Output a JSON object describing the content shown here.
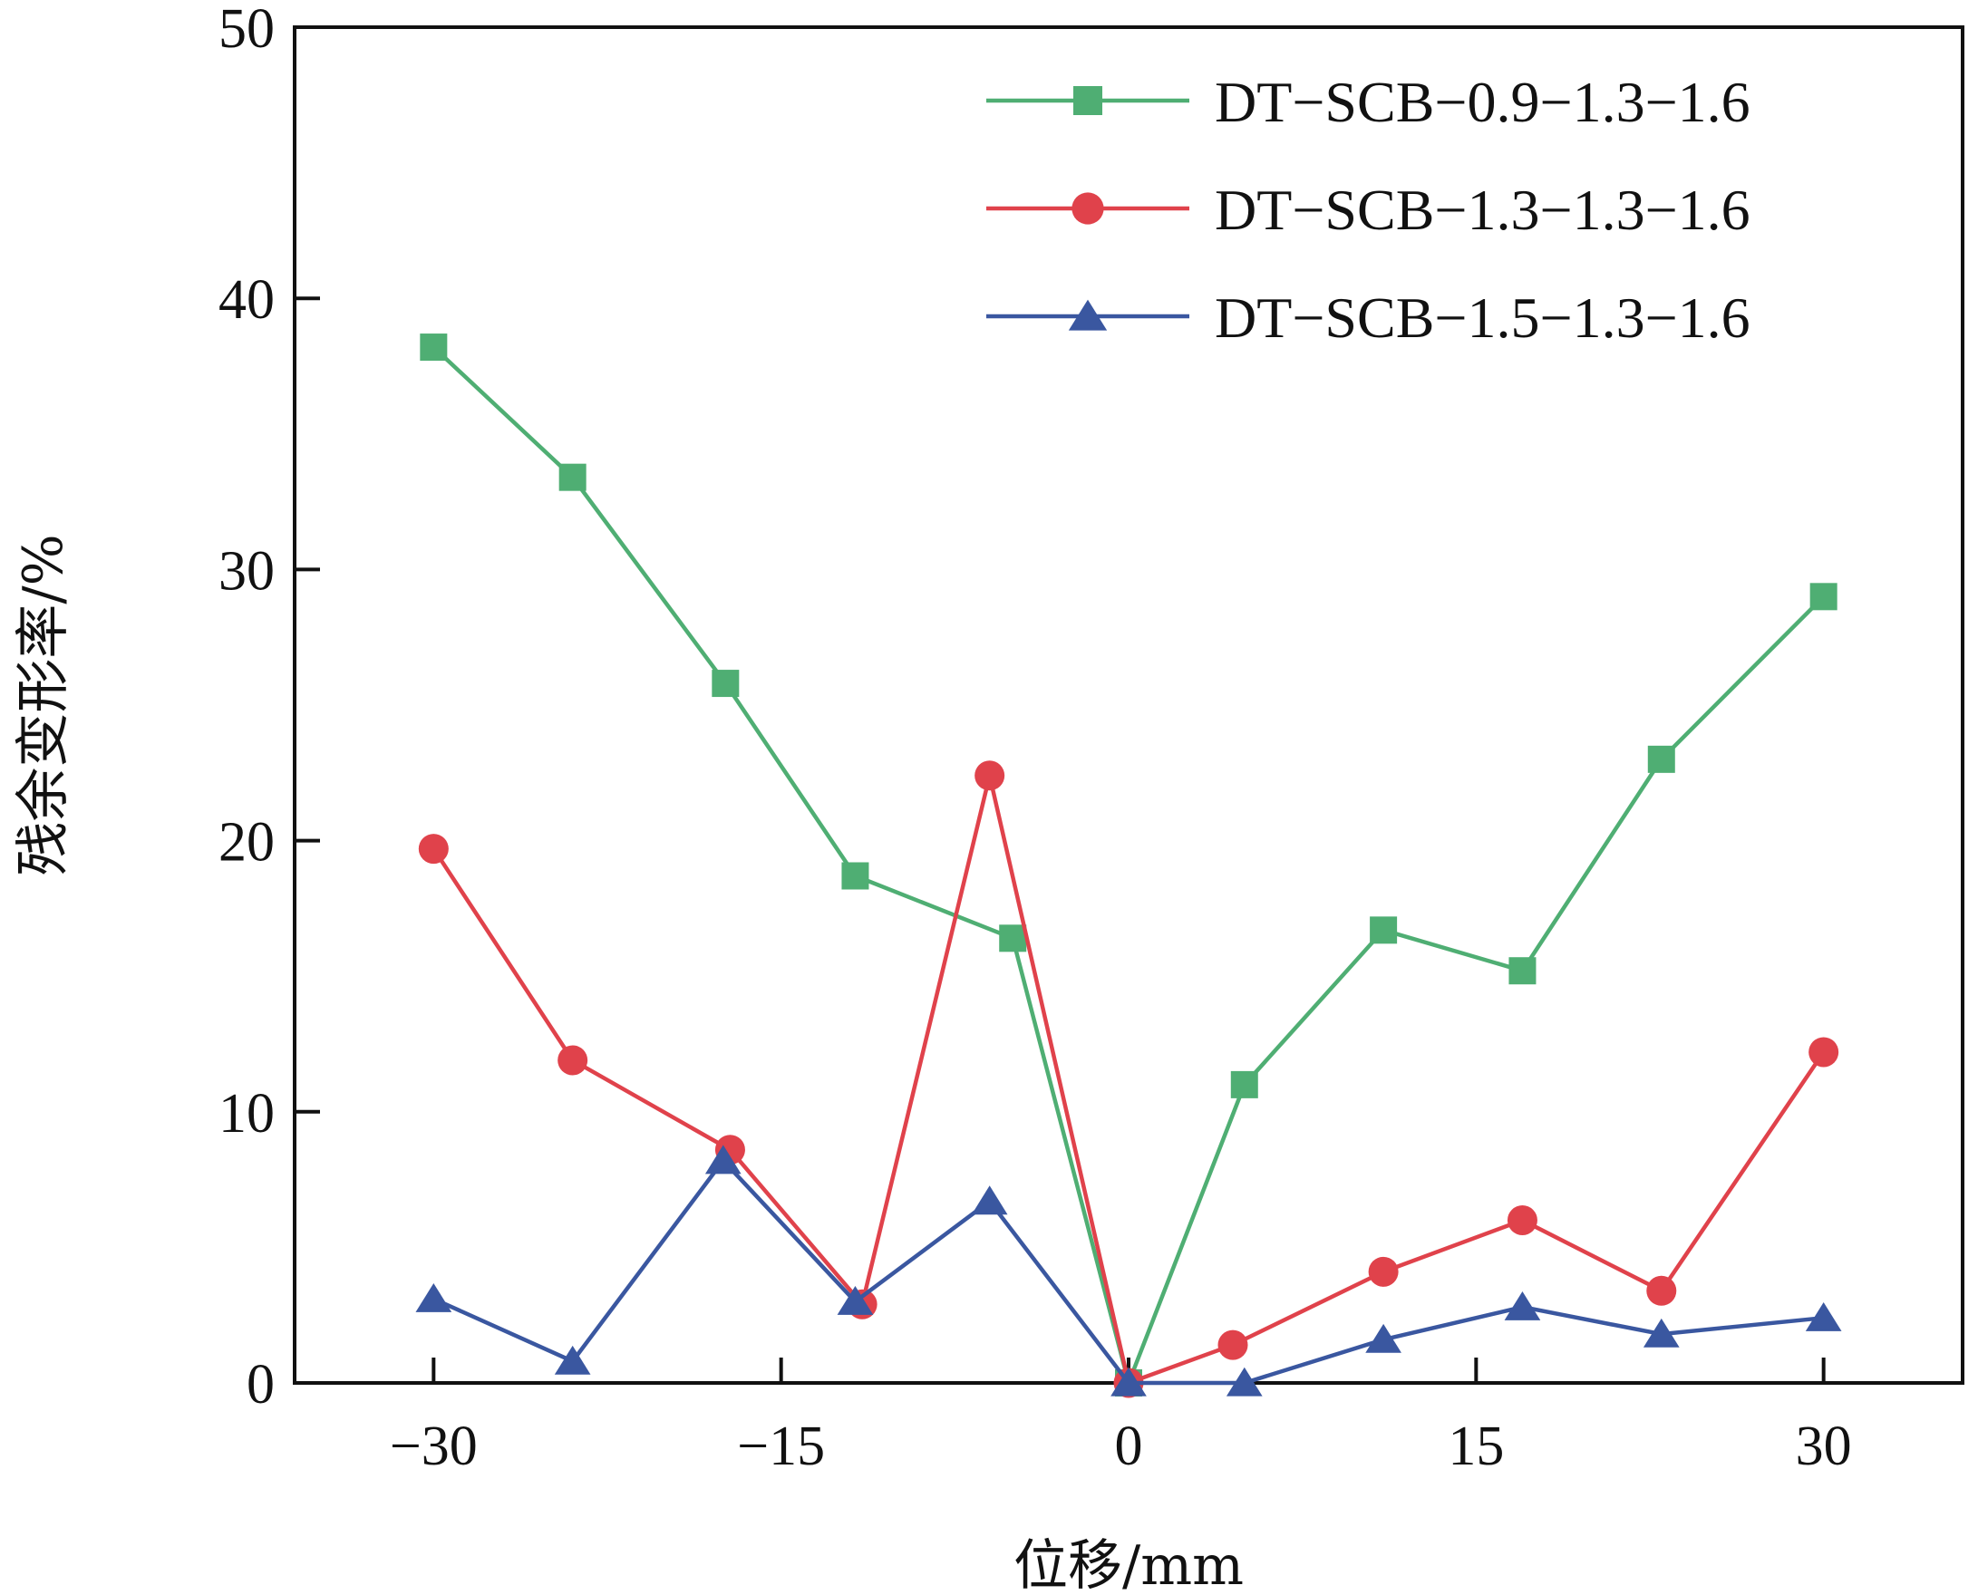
{
  "chart_data": {
    "type": "line",
    "xlabel": "位移/mm",
    "ylabel": "残余变形率/%",
    "xlim": [
      -36,
      36
    ],
    "ylim": [
      0,
      50
    ],
    "xticks": [
      -30,
      -15,
      0,
      15,
      30
    ],
    "xtick_labels": [
      "−30",
      "−15",
      "0",
      "15",
      "30"
    ],
    "yticks": [
      0,
      10,
      20,
      30,
      40,
      50
    ],
    "ytick_labels": [
      "0",
      "10",
      "20",
      "30",
      "40",
      "50"
    ],
    "grid": false,
    "legend_position": "top-right",
    "x": [
      -30,
      -24,
      -17,
      -11,
      -5,
      0,
      5,
      11,
      17,
      23,
      30
    ],
    "series": [
      {
        "name": "DT−SCB−0.9−1.3−1.6",
        "color": "#4fae73",
        "marker": "square",
        "points": [
          [
            -30,
            38.2
          ],
          [
            -24,
            33.4
          ],
          [
            -17.4,
            25.8
          ],
          [
            -11.8,
            18.7
          ],
          [
            -5,
            16.4
          ],
          [
            0,
            0
          ],
          [
            5,
            11
          ],
          [
            11,
            16.7
          ],
          [
            17,
            15.2
          ],
          [
            23,
            23
          ],
          [
            30,
            29
          ]
        ]
      },
      {
        "name": "DT−SCB−1.3−1.3−1.6",
        "color": "#e0424b",
        "marker": "circle",
        "points": [
          [
            -30,
            19.7
          ],
          [
            -24,
            11.9
          ],
          [
            -17.2,
            8.6
          ],
          [
            -11.5,
            2.9
          ],
          [
            -6,
            22.4
          ],
          [
            0,
            0
          ],
          [
            4.5,
            1.4
          ],
          [
            11,
            4.1
          ],
          [
            17,
            6
          ],
          [
            23,
            3.4
          ],
          [
            30,
            12.2
          ]
        ]
      },
      {
        "name": "DT−SCB−1.5−1.3−1.6",
        "color": "#3a57a0",
        "marker": "triangle",
        "points": [
          [
            -30,
            3.1
          ],
          [
            -24,
            0.8
          ],
          [
            -17.5,
            8.2
          ],
          [
            -11.8,
            3
          ],
          [
            -6,
            6.7
          ],
          [
            0,
            0
          ],
          [
            5,
            0
          ],
          [
            11,
            1.6
          ],
          [
            17,
            2.8
          ],
          [
            23,
            1.8
          ],
          [
            30,
            2.4
          ]
        ]
      }
    ]
  }
}
